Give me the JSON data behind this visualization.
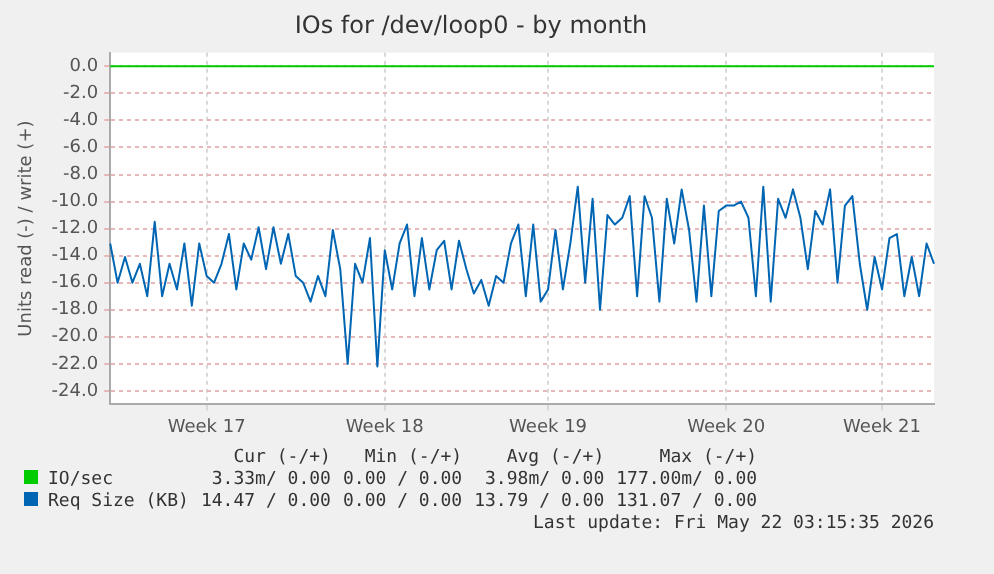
{
  "chart_data": {
    "type": "line",
    "title": "IOs for /dev/loop0 - by month",
    "ylabel": "Units read (-) / write (+)",
    "categories": [
      null,
      null,
      null,
      null,
      null,
      null,
      null,
      null,
      null,
      null,
      null,
      null,
      null,
      "Week 17",
      null,
      null,
      null,
      null,
      null,
      null,
      null,
      null,
      null,
      null,
      null,
      null,
      null,
      null,
      null,
      null,
      null,
      null,
      null,
      null,
      null,
      null,
      null,
      "Week 18",
      null,
      null,
      null,
      null,
      null,
      null,
      null,
      null,
      null,
      null,
      null,
      null,
      null,
      null,
      null,
      null,
      null,
      null,
      null,
      null,
      null,
      "Week 19",
      null,
      null,
      null,
      null,
      null,
      null,
      null,
      null,
      null,
      null,
      null,
      null,
      null,
      null,
      null,
      null,
      null,
      null,
      null,
      null,
      null,
      null,
      null,
      "Week 20",
      null,
      null,
      null,
      null,
      null,
      null,
      null,
      null,
      null,
      null,
      null,
      null,
      null,
      null,
      null,
      null,
      null,
      null,
      null,
      null,
      "Week 21",
      null,
      null,
      null,
      null,
      null,
      null,
      null
    ],
    "ylim": [
      -25,
      1
    ],
    "yticks": [
      {
        "value": -24,
        "label": "-24.0"
      },
      {
        "value": -22,
        "label": "-22.0"
      },
      {
        "value": -20,
        "label": "-20.0"
      },
      {
        "value": -18,
        "label": "-18.0"
      },
      {
        "value": -16,
        "label": "-16.0"
      },
      {
        "value": -14,
        "label": "-14.0"
      },
      {
        "value": -12,
        "label": "-12.0"
      },
      {
        "value": -10,
        "label": "-10.0"
      },
      {
        "value": -8,
        "label": "-8.0"
      },
      {
        "value": -6,
        "label": "-6.0"
      },
      {
        "value": -4,
        "label": "-4.0"
      },
      {
        "value": -2,
        "label": "-2.0"
      },
      {
        "value": 0,
        "label": "0.0"
      }
    ],
    "grid": true,
    "legend": "bottom",
    "marker": "none",
    "line_style": "solid",
    "series": [
      {
        "name": "IO/sec",
        "color": "#00cc00",
        "values": [
          0,
          0,
          0,
          0,
          0,
          0,
          0,
          0,
          0,
          0,
          0,
          0,
          0,
          0,
          0,
          0,
          0,
          0,
          0,
          0,
          0,
          0,
          0,
          0,
          0,
          0,
          0,
          0,
          0,
          0,
          0,
          0,
          0,
          0,
          0,
          0,
          0,
          0,
          0,
          0,
          0,
          0,
          0,
          0,
          0,
          0,
          0,
          0,
          0,
          0,
          0,
          0,
          0,
          0,
          0,
          0,
          0,
          0,
          0,
          0,
          0,
          0,
          0,
          0,
          0,
          0,
          0,
          0,
          0,
          0,
          0,
          0,
          0,
          0,
          0,
          0,
          0,
          0,
          0,
          0,
          0,
          0,
          0,
          0,
          0,
          0,
          0,
          0,
          0,
          0,
          0,
          0,
          0,
          0,
          0,
          0,
          0,
          0,
          0,
          0,
          0,
          0,
          0,
          0,
          0,
          0,
          0,
          0,
          0,
          0,
          0,
          0
        ]
      },
      {
        "name": "Req Size (KB)",
        "color": "#0066b3",
        "values": [
          -13.1,
          -16,
          -14.1,
          -16,
          -14.6,
          -17,
          -11.5,
          -17,
          -14.6,
          -16.5,
          -13.1,
          -17.7,
          -13.1,
          -15.5,
          -16,
          -14.6,
          -12.4,
          -16.5,
          -13.1,
          -14.3,
          -11.9,
          -15,
          -11.9,
          -14.6,
          -12.4,
          -15.5,
          -16,
          -17.4,
          -15.5,
          -17,
          -12.1,
          -15,
          -22,
          -14.6,
          -16,
          -12.7,
          -22.2,
          -13.6,
          -16.5,
          -13.1,
          -11.7,
          -17,
          -12.7,
          -16.5,
          -13.6,
          -12.9,
          -16.5,
          -12.9,
          -15,
          -16.8,
          -15.8,
          -17.7,
          -15.5,
          -16,
          -13.1,
          -11.7,
          -17,
          -11.7,
          -17.4,
          -16.5,
          -12.1,
          -16.5,
          -13.1,
          -8.9,
          -16,
          -9.8,
          -18,
          -11,
          -11.7,
          -11.2,
          -9.6,
          -17,
          -9.6,
          -11.2,
          -17.4,
          -9.8,
          -13.1,
          -9.1,
          -12.1,
          -17.4,
          -10.3,
          -17,
          -10.7,
          -10.3,
          -10.3,
          -10,
          -11.2,
          -17,
          -8.9,
          -17.4,
          -9.8,
          -11.2,
          -9.1,
          -11.2,
          -15,
          -10.7,
          -11.7,
          -9.1,
          -16,
          -10.3,
          -9.6,
          -14.6,
          -18,
          -14.1,
          -16.5,
          -12.7,
          -12.4,
          -17,
          -14.1,
          -17,
          -13.1,
          -14.6
        ]
      }
    ],
    "annotations": [
      "Cur (-/+)",
      "Min (-/+)",
      "Avg (-/+)",
      "Max (-/+)",
      "3.33m/ 0.00",
      "0.00 / 0.00",
      "3.98m/ 0.00",
      "177.00m/ 0.00",
      "14.47 / 0.00",
      "0.00 / 0.00",
      "13.79 / 0.00",
      "131.07 / 0.00",
      "Last update: Fri May 22 03:15:35 2026"
    ]
  }
}
